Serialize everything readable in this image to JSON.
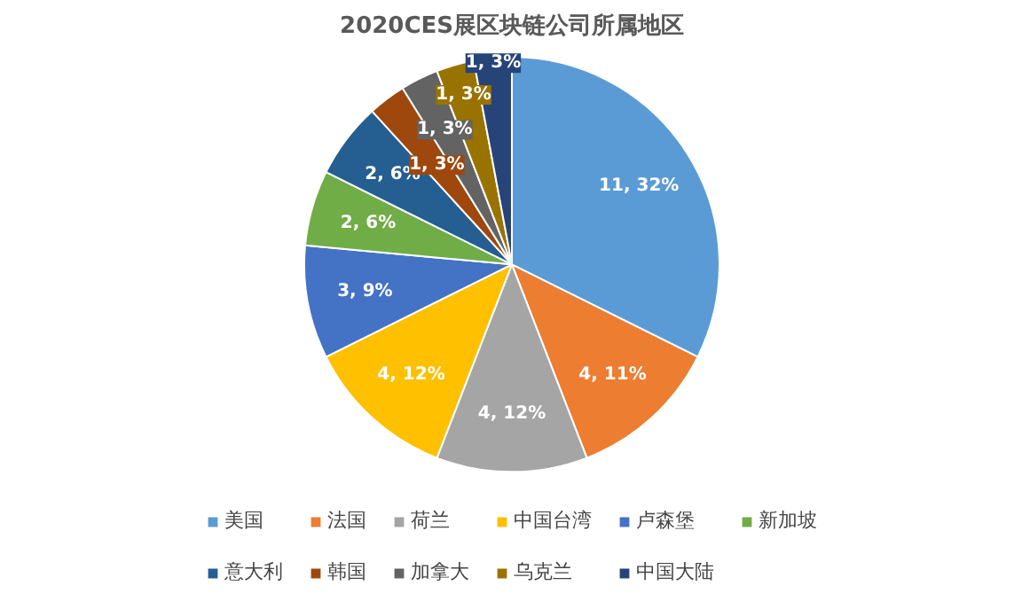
{
  "chart_data": {
    "type": "pie",
    "title": "2020CES展区块链公司所属地区",
    "categories": [
      "美国",
      "法国",
      "荷兰",
      "中国台湾",
      "卢森堡",
      "新加坡",
      "意大利",
      "韩国",
      "加拿大",
      "乌克兰",
      "中国大陆"
    ],
    "values": [
      11,
      4,
      4,
      4,
      3,
      2,
      2,
      1,
      1,
      1,
      1
    ],
    "value_labels": [
      "11, 32%",
      "4, 11%",
      "4, 12%",
      "4, 12%",
      "3, 9%",
      "2, 6%",
      "2, 6%",
      "1, 3%",
      "1, 3%",
      "1, 3%",
      "1, 3%"
    ],
    "colors": [
      "#5b9bd5",
      "#ed7d31",
      "#a5a5a5",
      "#ffc000",
      "#4472c4",
      "#70ad47",
      "#255e91",
      "#9e480e",
      "#636363",
      "#997300",
      "#264478"
    ],
    "legend": "bottom"
  }
}
